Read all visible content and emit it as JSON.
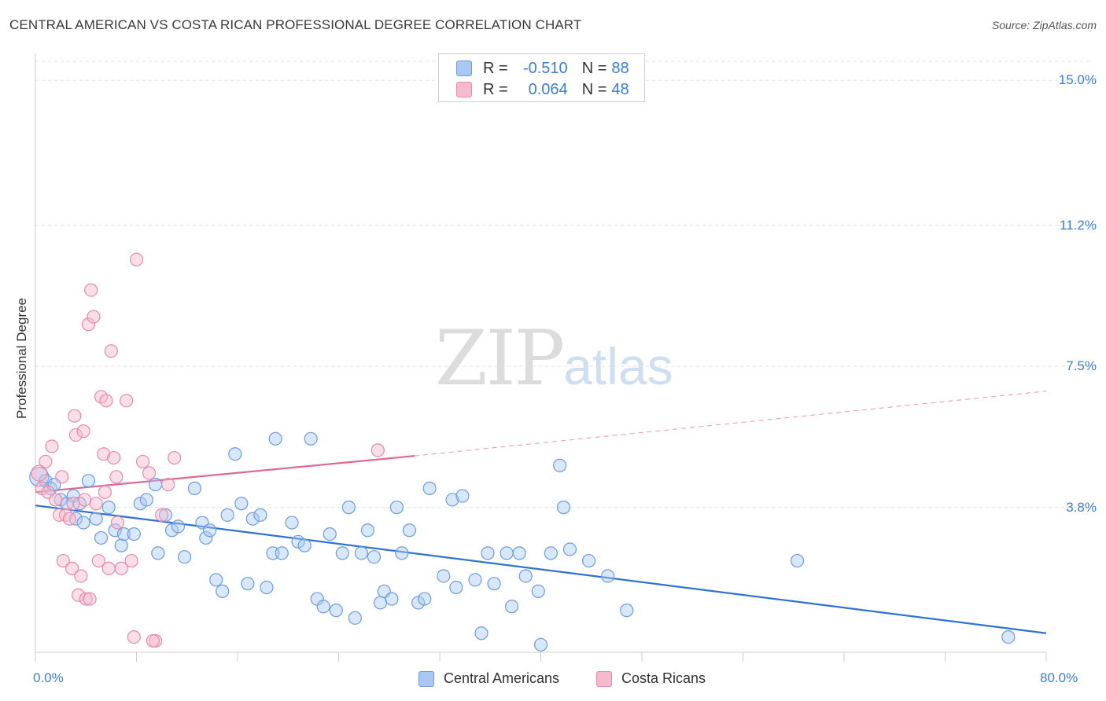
{
  "title": "CENTRAL AMERICAN VS COSTA RICAN PROFESSIONAL DEGREE CORRELATION CHART",
  "source": "Source: ZipAtlas.com",
  "watermark": {
    "zip": "ZIP",
    "atlas": "atlas"
  },
  "legend_top": [
    {
      "r_label": "R =",
      "r": "-0.510",
      "n_label": "N =",
      "n": "88",
      "color": "#a9c9f2"
    },
    {
      "r_label": "R =",
      "r": "0.064",
      "n_label": "N =",
      "n": "48",
      "color": "#f7b9cd"
    }
  ],
  "colors": {
    "blue_fill": "#a9c9f2",
    "blue_stroke": "#6b9de0",
    "blue_line": "#2f72d6",
    "pink_fill": "#f7b9cd",
    "pink_stroke": "#e98aa8",
    "pink_line": "#e06896",
    "tick_label": "#3b7dd8",
    "grid": "#e3e3e3"
  },
  "chart_data": {
    "type": "scatter",
    "title": "CENTRAL AMERICAN VS COSTA RICAN PROFESSIONAL DEGREE CORRELATION CHART",
    "xlabel": "",
    "ylabel": "Professional Degree",
    "xlim": [
      0,
      80
    ],
    "ylim": [
      0,
      15.5
    ],
    "x_tick_labels": [
      "0.0%",
      "80.0%"
    ],
    "y_ticks": [
      3.8,
      7.5,
      11.2,
      15.0
    ],
    "y_tick_labels": [
      "3.8%",
      "7.5%",
      "11.2%",
      "15.0%"
    ],
    "grid": "horizontal dashed",
    "legend_position": "bottom",
    "series": [
      {
        "name": "Central Americans",
        "color": "#a9c9f2",
        "points": [
          [
            0.3,
            4.6
          ],
          [
            0.8,
            4.5
          ],
          [
            1.2,
            4.3
          ],
          [
            1.5,
            4.4
          ],
          [
            2.0,
            4.0
          ],
          [
            2.5,
            3.9
          ],
          [
            3.0,
            4.1
          ],
          [
            3.5,
            3.9
          ],
          [
            3.2,
            3.5
          ],
          [
            3.8,
            3.4
          ],
          [
            4.2,
            4.5
          ],
          [
            4.8,
            3.5
          ],
          [
            5.2,
            3.0
          ],
          [
            5.8,
            3.8
          ],
          [
            6.3,
            3.2
          ],
          [
            6.8,
            2.8
          ],
          [
            7.0,
            3.1
          ],
          [
            7.8,
            3.1
          ],
          [
            8.3,
            3.9
          ],
          [
            8.8,
            4.0
          ],
          [
            9.5,
            4.4
          ],
          [
            9.7,
            2.6
          ],
          [
            10.3,
            3.6
          ],
          [
            10.8,
            3.2
          ],
          [
            11.3,
            3.3
          ],
          [
            11.8,
            2.5
          ],
          [
            12.6,
            4.3
          ],
          [
            13.2,
            3.4
          ],
          [
            13.5,
            3.0
          ],
          [
            13.8,
            3.2
          ],
          [
            14.3,
            1.9
          ],
          [
            14.8,
            1.6
          ],
          [
            15.2,
            3.6
          ],
          [
            15.8,
            5.2
          ],
          [
            16.3,
            3.9
          ],
          [
            16.8,
            1.8
          ],
          [
            17.2,
            3.5
          ],
          [
            17.8,
            3.6
          ],
          [
            18.3,
            1.7
          ],
          [
            18.8,
            2.6
          ],
          [
            19.0,
            5.6
          ],
          [
            19.5,
            2.6
          ],
          [
            20.3,
            3.4
          ],
          [
            20.8,
            2.9
          ],
          [
            21.3,
            2.8
          ],
          [
            21.8,
            5.6
          ],
          [
            22.3,
            1.4
          ],
          [
            22.8,
            1.2
          ],
          [
            23.3,
            3.1
          ],
          [
            23.8,
            1.1
          ],
          [
            24.3,
            2.6
          ],
          [
            24.8,
            3.8
          ],
          [
            25.3,
            0.9
          ],
          [
            25.8,
            2.6
          ],
          [
            26.3,
            3.2
          ],
          [
            26.8,
            2.5
          ],
          [
            27.3,
            1.3
          ],
          [
            27.6,
            1.6
          ],
          [
            28.2,
            1.4
          ],
          [
            28.6,
            3.8
          ],
          [
            29.0,
            2.6
          ],
          [
            29.6,
            3.2
          ],
          [
            30.3,
            1.3
          ],
          [
            30.8,
            1.4
          ],
          [
            31.2,
            4.3
          ],
          [
            32.3,
            2.0
          ],
          [
            33.0,
            4.0
          ],
          [
            33.3,
            1.7
          ],
          [
            33.8,
            4.1
          ],
          [
            34.8,
            1.9
          ],
          [
            35.3,
            0.5
          ],
          [
            35.8,
            2.6
          ],
          [
            36.3,
            1.8
          ],
          [
            37.3,
            2.6
          ],
          [
            37.7,
            1.2
          ],
          [
            38.3,
            2.6
          ],
          [
            38.8,
            2.0
          ],
          [
            39.8,
            1.6
          ],
          [
            40.0,
            0.2
          ],
          [
            40.8,
            2.6
          ],
          [
            41.8,
            3.8
          ],
          [
            42.3,
            2.7
          ],
          [
            43.8,
            2.4
          ],
          [
            45.3,
            2.0
          ],
          [
            46.8,
            1.1
          ],
          [
            60.3,
            2.4
          ],
          [
            77.0,
            0.4
          ],
          [
            41.5,
            4.9
          ]
        ],
        "trend": {
          "x": [
            0,
            80
          ],
          "y": [
            3.85,
            0.5
          ]
        }
      },
      {
        "name": "Costa Ricans",
        "color": "#f7b9cd",
        "points": [
          [
            0.3,
            4.7
          ],
          [
            0.5,
            4.3
          ],
          [
            0.8,
            5.0
          ],
          [
            1.0,
            4.2
          ],
          [
            1.3,
            5.4
          ],
          [
            1.6,
            4.0
          ],
          [
            1.9,
            3.6
          ],
          [
            2.2,
            2.4
          ],
          [
            2.4,
            3.6
          ],
          [
            2.7,
            3.5
          ],
          [
            2.9,
            2.2
          ],
          [
            3.1,
            6.2
          ],
          [
            3.2,
            5.7
          ],
          [
            3.4,
            1.5
          ],
          [
            3.6,
            2.0
          ],
          [
            3.8,
            5.8
          ],
          [
            4.0,
            1.4
          ],
          [
            4.2,
            8.6
          ],
          [
            4.4,
            9.5
          ],
          [
            4.6,
            8.8
          ],
          [
            4.8,
            3.9
          ],
          [
            5.0,
            2.4
          ],
          [
            5.2,
            6.7
          ],
          [
            5.4,
            5.2
          ],
          [
            5.6,
            6.6
          ],
          [
            5.8,
            2.2
          ],
          [
            6.0,
            7.9
          ],
          [
            6.2,
            5.1
          ],
          [
            6.4,
            4.6
          ],
          [
            6.8,
            2.2
          ],
          [
            7.2,
            6.6
          ],
          [
            7.6,
            2.4
          ],
          [
            8.0,
            10.3
          ],
          [
            8.5,
            5.0
          ],
          [
            9.0,
            4.7
          ],
          [
            9.5,
            0.3
          ],
          [
            10.0,
            3.6
          ],
          [
            10.5,
            4.4
          ],
          [
            11.0,
            5.1
          ],
          [
            4.3,
            1.4
          ],
          [
            5.5,
            4.2
          ],
          [
            6.5,
            3.4
          ],
          [
            7.8,
            0.4
          ],
          [
            9.3,
            0.3
          ],
          [
            3.9,
            4.0
          ],
          [
            3.0,
            3.9
          ],
          [
            2.1,
            4.6
          ],
          [
            27.1,
            5.3
          ]
        ],
        "trend": {
          "x": [
            0,
            30,
            80
          ],
          "y": [
            4.2,
            5.15,
            6.85
          ]
        }
      }
    ]
  },
  "legend_bottom": [
    {
      "label": "Central Americans",
      "color": "#a9c9f2"
    },
    {
      "label": "Costa Ricans",
      "color": "#f7b9cd"
    }
  ]
}
